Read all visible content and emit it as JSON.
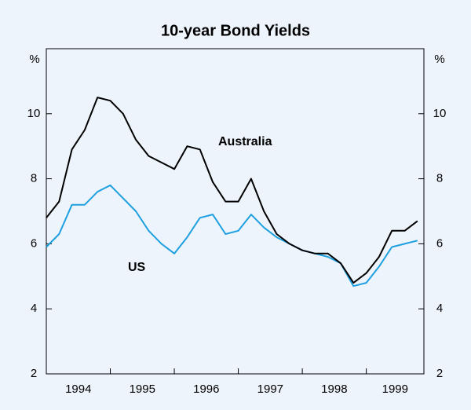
{
  "chart_data": {
    "type": "line",
    "title": "10-year Bond Yields",
    "y_unit": "%",
    "x": [
      1994.0,
      1994.2,
      1994.4,
      1994.6,
      1994.8,
      1995.0,
      1995.2,
      1995.4,
      1995.6,
      1995.8,
      1996.0,
      1996.2,
      1996.4,
      1996.6,
      1996.8,
      1997.0,
      1997.2,
      1997.4,
      1997.6,
      1997.8,
      1998.0,
      1998.2,
      1998.4,
      1998.6,
      1998.8,
      1999.0,
      1999.2,
      1999.4,
      1999.6,
      1999.8
    ],
    "series": [
      {
        "name": "Australia",
        "color": "#000000",
        "values": [
          6.8,
          7.3,
          8.9,
          9.5,
          10.5,
          10.4,
          10.0,
          9.2,
          8.7,
          8.5,
          8.3,
          9.0,
          8.9,
          7.9,
          7.3,
          7.3,
          8.0,
          7.0,
          6.3,
          6.0,
          5.8,
          5.7,
          5.7,
          5.4,
          4.8,
          5.1,
          5.6,
          6.4,
          6.4,
          6.7
        ]
      },
      {
        "name": "US",
        "color": "#1ea0e0",
        "values": [
          5.9,
          6.3,
          7.2,
          7.2,
          7.6,
          7.8,
          7.4,
          7.0,
          6.4,
          6.0,
          5.7,
          6.2,
          6.8,
          6.9,
          6.3,
          6.4,
          6.9,
          6.5,
          6.2,
          6.0,
          5.8,
          5.7,
          5.6,
          5.4,
          4.7,
          4.8,
          5.3,
          5.9,
          6.0,
          6.1
        ]
      }
    ],
    "xlim": [
      1994,
      1999.9
    ],
    "xticks": [
      1994,
      1995,
      1996,
      1997,
      1998,
      1999
    ],
    "ylim": [
      2,
      12
    ],
    "yticks": [
      2,
      4,
      6,
      8,
      10
    ]
  }
}
